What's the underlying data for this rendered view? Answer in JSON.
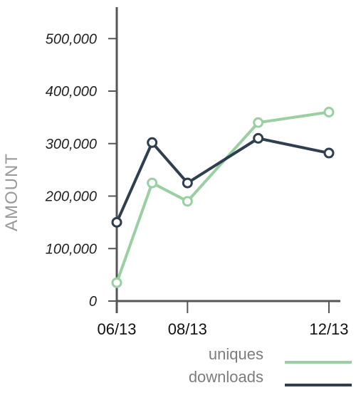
{
  "chart_data": {
    "type": "line",
    "ylabel": "AMOUNT",
    "ylim": [
      0,
      560000
    ],
    "yticks": [
      0,
      100000,
      200000,
      300000,
      400000,
      500000
    ],
    "ytick_labels": [
      "0",
      "100,000",
      "200,000",
      "300,000",
      "400,000",
      "500,000"
    ],
    "x": [
      "06/13",
      "07/13",
      "08/13",
      "09/13",
      "10/13",
      "11/13",
      "12/13"
    ],
    "xtick_labels": [
      "06/13",
      "08/13",
      "12/13"
    ],
    "xtick_indices": [
      0,
      2,
      6
    ],
    "legend_position": "bottom-right",
    "grid": false,
    "series": [
      {
        "name": "uniques",
        "color": "#9ad0a1",
        "points": [
          {
            "x": "06/13",
            "y": 35000
          },
          {
            "x": "07/13",
            "y": 225000
          },
          {
            "x": "08/13",
            "y": 190000
          },
          {
            "x": "10/13",
            "y": 340000
          },
          {
            "x": "12/13",
            "y": 360000
          }
        ]
      },
      {
        "name": "downloads",
        "color": "#2f3f4f",
        "points": [
          {
            "x": "06/13",
            "y": 150000
          },
          {
            "x": "07/13",
            "y": 302000
          },
          {
            "x": "08/13",
            "y": 225000
          },
          {
            "x": "10/13",
            "y": 310000
          },
          {
            "x": "12/13",
            "y": 282000
          }
        ]
      }
    ]
  }
}
